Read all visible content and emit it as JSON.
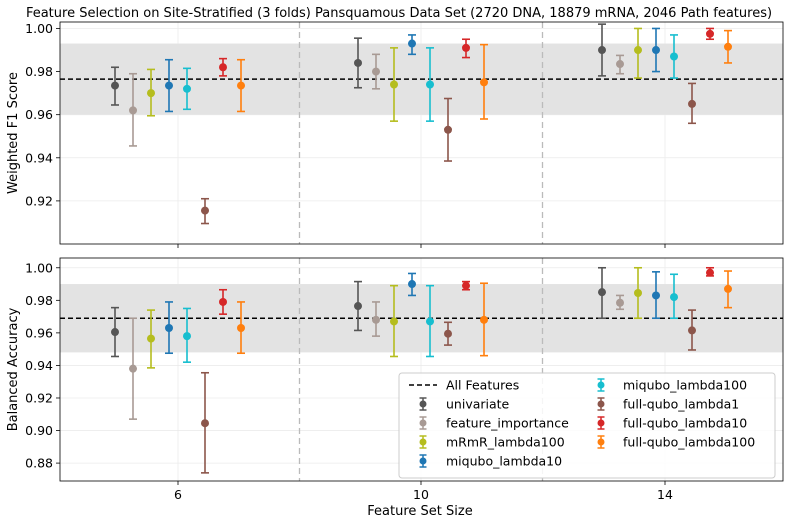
{
  "title": "Feature Selection on Site-Stratified (3 folds) Pansquamous Data Set (2720 DNA,  18879 mRNA, 2046 Path features)",
  "xlabel": "Feature Set Size",
  "colors": {
    "univariate": "#555555",
    "feature_importance": "#a89a94",
    "mRmR_lambda100": "#b5bd1e",
    "miqubo_lambda10": "#1f77b4",
    "miqubo_lambda100": "#17becf",
    "full-qubo_lambda1": "#8c564b",
    "full-qubo_lambda10": "#d62728",
    "full-qubo_lambda100": "#ff7f0e",
    "band": "#e3e3e3",
    "baseline": "#000000",
    "separator": "#bbbbbb"
  },
  "legend": {
    "items": [
      {
        "label": "All Features",
        "key": "baseline",
        "kind": "line"
      },
      {
        "label": "univariate",
        "key": "univariate",
        "kind": "marker"
      },
      {
        "label": "feature_importance",
        "key": "feature_importance",
        "kind": "marker"
      },
      {
        "label": "mRmR_lambda100",
        "key": "mRmR_lambda100",
        "kind": "marker"
      },
      {
        "label": "miqubo_lambda10",
        "key": "miqubo_lambda10",
        "kind": "marker"
      },
      {
        "label": "miqubo_lambda100",
        "key": "miqubo_lambda100",
        "kind": "marker"
      },
      {
        "label": "full-qubo_lambda1",
        "key": "full-qubo_lambda1",
        "kind": "marker"
      },
      {
        "label": "full-qubo_lambda10",
        "key": "full-qubo_lambda10",
        "kind": "marker"
      },
      {
        "label": "full-qubo_lambda100",
        "key": "full-qubo_lambda100",
        "kind": "marker"
      }
    ]
  },
  "chart_data": [
    {
      "type": "scatter",
      "ylabel": "Weighted F1 Score",
      "ylim": [
        0.9,
        1.003
      ],
      "yticks": [
        0.92,
        0.94,
        0.96,
        0.98,
        1.0
      ],
      "ytick_labels": [
        "0.92",
        "0.94",
        "0.96",
        "0.98",
        "1.00"
      ],
      "categories": [
        "6",
        "10",
        "14"
      ],
      "baseline": 0.9765,
      "band": [
        0.96,
        0.993
      ],
      "series": [
        {
          "name": "univariate",
          "values": [
            [
              0.9735,
              0.9645,
              0.982
            ],
            [
              0.984,
              0.9725,
              0.9955
            ],
            [
              0.99,
              0.978,
              1.002
            ]
          ]
        },
        {
          "name": "feature_importance",
          "values": [
            [
              0.962,
              0.9455,
              0.979
            ],
            [
              0.98,
              0.972,
              0.988
            ],
            [
              0.9835,
              0.979,
              0.9875
            ]
          ]
        },
        {
          "name": "mRmR_lambda100",
          "values": [
            [
              0.97,
              0.9595,
              0.981
            ],
            [
              0.974,
              0.957,
              0.991
            ],
            [
              0.99,
              0.977,
              1.0
            ]
          ]
        },
        {
          "name": "miqubo_lambda10",
          "values": [
            [
              0.9735,
              0.9615,
              0.9855
            ],
            [
              0.993,
              0.988,
              0.997
            ],
            [
              0.99,
              0.98,
              1.0
            ]
          ]
        },
        {
          "name": "miqubo_lambda100",
          "values": [
            [
              0.972,
              0.9625,
              0.9815
            ],
            [
              0.974,
              0.957,
              0.991
            ],
            [
              0.987,
              0.977,
              0.997
            ]
          ]
        },
        {
          "name": "full-qubo_lambda1",
          "values": [
            [
              0.9155,
              0.9095,
              0.921
            ],
            [
              0.953,
              0.9385,
              0.9675
            ],
            [
              0.965,
              0.956,
              0.9745
            ]
          ]
        },
        {
          "name": "full-qubo_lambda10",
          "values": [
            [
              0.982,
              0.978,
              0.986
            ],
            [
              0.991,
              0.9865,
              0.995
            ],
            [
              0.9975,
              0.995,
              1.0
            ]
          ]
        },
        {
          "name": "full-qubo_lambda100",
          "values": [
            [
              0.9735,
              0.9615,
              0.9855
            ],
            [
              0.975,
              0.958,
              0.9925
            ],
            [
              0.9915,
              0.984,
              0.999
            ]
          ]
        }
      ]
    },
    {
      "type": "scatter",
      "ylabel": "Balanced Accuracy",
      "xlabel": "Feature Set Size",
      "ylim": [
        0.869,
        1.006
      ],
      "yticks": [
        0.88,
        0.9,
        0.92,
        0.94,
        0.96,
        0.98,
        1.0
      ],
      "ytick_labels": [
        "0.88",
        "0.90",
        "0.92",
        "0.94",
        "0.96",
        "0.98",
        "1.00"
      ],
      "categories": [
        "6",
        "10",
        "14"
      ],
      "baseline": 0.969,
      "band": [
        0.948,
        0.99
      ],
      "series": [
        {
          "name": "univariate",
          "values": [
            [
              0.9605,
              0.9455,
              0.9755
            ],
            [
              0.9765,
              0.9615,
              0.9915
            ],
            [
              0.985,
              0.969,
              1.0
            ]
          ]
        },
        {
          "name": "feature_importance",
          "values": [
            [
              0.938,
              0.907,
              0.969
            ],
            [
              0.968,
              0.958,
              0.979
            ],
            [
              0.9785,
              0.9745,
              0.983
            ]
          ]
        },
        {
          "name": "mRmR_lambda100",
          "values": [
            [
              0.9565,
              0.9385,
              0.974
            ],
            [
              0.967,
              0.9455,
              0.989
            ],
            [
              0.9845,
              0.969,
              1.0
            ]
          ]
        },
        {
          "name": "miqubo_lambda10",
          "values": [
            [
              0.963,
              0.9475,
              0.979
            ],
            [
              0.99,
              0.983,
              0.9965
            ],
            [
              0.983,
              0.969,
              0.9975
            ]
          ]
        },
        {
          "name": "miqubo_lambda100",
          "values": [
            [
              0.958,
              0.942,
              0.975
            ],
            [
              0.967,
              0.9455,
              0.989
            ],
            [
              0.982,
              0.969,
              0.996
            ]
          ]
        },
        {
          "name": "full-qubo_lambda1",
          "values": [
            [
              0.9045,
              0.874,
              0.9355
            ],
            [
              0.9595,
              0.9525,
              0.9665
            ],
            [
              0.9615,
              0.9495,
              0.974
            ]
          ]
        },
        {
          "name": "full-qubo_lambda10",
          "values": [
            [
              0.979,
              0.9715,
              0.9865
            ],
            [
              0.989,
              0.9865,
              0.9915
            ],
            [
              0.997,
              0.995,
              1.0
            ]
          ]
        },
        {
          "name": "full-qubo_lambda100",
          "values": [
            [
              0.963,
              0.9475,
              0.979
            ],
            [
              0.968,
              0.946,
              0.9905
            ],
            [
              0.987,
              0.9755,
              0.998
            ]
          ]
        }
      ]
    }
  ]
}
